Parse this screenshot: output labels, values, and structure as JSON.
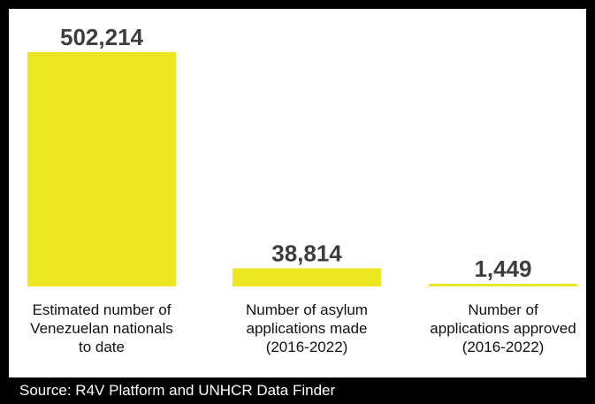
{
  "chart_data": {
    "type": "bar",
    "categories": [
      "Estimated number of Venezuelan nationals to date",
      "Number of asylum applications made (2016-2022)",
      "Number of applications approved (2016-2022)"
    ],
    "category_lines": [
      [
        "Estimated number of",
        "Venezuelan nationals",
        "to date"
      ],
      [
        "Number of asylum",
        "applications made",
        "(2016-2022)"
      ],
      [
        "Number of",
        "applications approved",
        "(2016-2022)"
      ]
    ],
    "values": [
      502214,
      38814,
      1449
    ],
    "value_labels": [
      "502,214",
      "38,814",
      "1,449"
    ],
    "ylim": [
      0,
      502214
    ],
    "bar_color": "#ede623",
    "value_label_color": "#3d3d3d",
    "grid": false,
    "legend": "none",
    "title": "",
    "xlabel": "",
    "ylabel": ""
  },
  "source": "Source: R4V Platform and UNHCR Data Finder",
  "colors": {
    "background": "#ffffff",
    "frame": "#000000",
    "bar": "#ede623"
  }
}
